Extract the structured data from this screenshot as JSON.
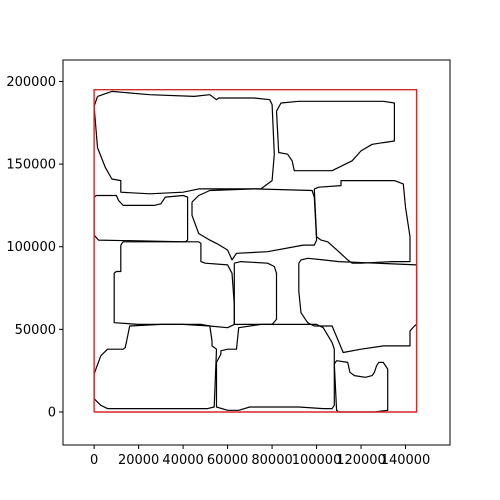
{
  "chart_data": {
    "type": "line",
    "title": "",
    "xlabel": "",
    "ylabel": "",
    "xlim": [
      -14000,
      160000
    ],
    "ylim": [
      -20000,
      213000
    ],
    "x_ticks": [
      0,
      20000,
      40000,
      60000,
      80000,
      100000,
      120000,
      140000
    ],
    "x_tick_labels": [
      "0",
      "20000",
      "40000",
      "60000",
      "80000",
      "100000",
      "120000",
      "140000"
    ],
    "y_ticks": [
      0,
      50000,
      100000,
      150000,
      200000
    ],
    "y_tick_labels": [
      "0",
      "50000",
      "100000",
      "150000",
      "200000"
    ],
    "grid": false,
    "colors": {
      "boundary": "#d62728",
      "shapes": "#000000",
      "axes": "#000000"
    },
    "boundary": {
      "x": [
        0,
        145000,
        145000,
        0,
        0
      ],
      "y": [
        0,
        0,
        195000,
        195000,
        0
      ]
    },
    "series": [
      {
        "x": [
          1500,
          8000,
          25000,
          45000,
          52000,
          55000,
          56000,
          72000,
          79000,
          80000,
          81000,
          80000,
          75000,
          65000,
          47000,
          40000,
          25000,
          12000,
          12000,
          8000,
          5000,
          1500,
          0,
          1500
        ],
        "y": [
          191000,
          194000,
          192000,
          191000,
          192000,
          189000,
          190000,
          190000,
          189000,
          186000,
          156000,
          140000,
          135000,
          135000,
          135000,
          133000,
          132000,
          133000,
          140000,
          141000,
          148000,
          160000,
          185000,
          191000
        ]
      },
      {
        "x": [
          82000,
          84000,
          92000,
          130000,
          135000,
          135000,
          130000,
          125000,
          120000,
          116000,
          107000,
          90000,
          89000,
          87000,
          83000,
          82000
        ],
        "y": [
          182000,
          187000,
          188000,
          188000,
          187000,
          164000,
          163000,
          162000,
          158000,
          152000,
          146000,
          146000,
          152000,
          156000,
          157000,
          182000
        ]
      },
      {
        "x": [
          0,
          1000,
          10000,
          11000,
          13000,
          27000,
          30000,
          32000,
          40000,
          42000,
          42000,
          41000,
          2000,
          0,
          0
        ],
        "y": [
          130000,
          131000,
          131000,
          128000,
          125000,
          125000,
          126000,
          130000,
          131000,
          130000,
          104000,
          103000,
          104000,
          107000,
          130000
        ]
      },
      {
        "x": [
          44000,
          47000,
          52000,
          72000,
          98000,
          99000,
          100000,
          99000,
          94000,
          78000,
          64000,
          62000,
          60000,
          55000,
          52000,
          47000,
          44000,
          44000
        ],
        "y": [
          127000,
          131000,
          134000,
          135000,
          134000,
          130000,
          104000,
          101000,
          101000,
          97000,
          96000,
          92000,
          98000,
          102000,
          104000,
          108000,
          119000,
          127000
        ]
      },
      {
        "x": [
          99000,
          101000,
          111000,
          111000,
          135000,
          139000,
          140000,
          142000,
          142000,
          134000,
          120000,
          116000,
          114000,
          110000,
          105000,
          102000,
          100000,
          99000
        ],
        "y": [
          135000,
          136000,
          137000,
          140000,
          140000,
          138000,
          124000,
          106000,
          91000,
          91000,
          90000,
          90000,
          92000,
          97000,
          103000,
          104000,
          106000,
          135000
        ]
      },
      {
        "x": [
          12000,
          13000,
          20000,
          47000,
          48000,
          48000,
          50000,
          60000,
          62000,
          63000,
          63000,
          60000,
          52000,
          40000,
          20000,
          9000,
          9000,
          10000,
          12000,
          12000
        ],
        "y": [
          101000,
          103000,
          103000,
          103000,
          102000,
          91000,
          90000,
          89000,
          84000,
          65000,
          53000,
          51000,
          52000,
          53000,
          53000,
          54000,
          84000,
          85000,
          85000,
          101000
        ]
      },
      {
        "x": [
          63000,
          66000,
          78000,
          81000,
          82000,
          82000,
          80000,
          74000,
          63000,
          63000
        ],
        "y": [
          90000,
          91000,
          90000,
          88000,
          84000,
          56000,
          53000,
          53000,
          53000,
          90000
        ]
      },
      {
        "x": [
          92000,
          93000,
          96000,
          103000,
          110000,
          145000,
          145000,
          144000,
          142000,
          142000,
          130000,
          120000,
          112000,
          107000,
          99000,
          96000,
          93000,
          92000,
          92000
        ],
        "y": [
          90000,
          92000,
          93000,
          92000,
          91000,
          89000,
          53000,
          52000,
          49000,
          40000,
          40000,
          38000,
          36000,
          52000,
          52000,
          54000,
          60000,
          73000,
          90000
        ]
      },
      {
        "x": [
          3000,
          6000,
          13000,
          14000,
          16000,
          30000,
          48000,
          52000,
          53000,
          53000,
          55000,
          54000,
          51000,
          40000,
          25000,
          12000,
          6000,
          3000,
          0,
          0,
          3000
        ],
        "y": [
          34000,
          38000,
          38000,
          39000,
          52000,
          53000,
          53000,
          52000,
          43000,
          40000,
          38000,
          3000,
          2000,
          2000,
          2000,
          2000,
          2000,
          4000,
          8000,
          23000,
          34000
        ]
      },
      {
        "x": [
          55000,
          57000,
          57000,
          60000,
          64000,
          65000,
          75000,
          100000,
          103000,
          107000,
          108000,
          108000,
          107000,
          103000,
          92000,
          77000,
          70000,
          65000,
          60000,
          55000,
          55000
        ],
        "y": [
          30000,
          35000,
          37000,
          38000,
          38000,
          51000,
          53000,
          53000,
          51000,
          42000,
          38000,
          4000,
          2000,
          2000,
          3000,
          3000,
          3000,
          1000,
          1000,
          3000,
          30000
        ]
      },
      {
        "x": [
          108000,
          109000,
          114000,
          115000,
          117000,
          122000,
          125000,
          126000,
          127000,
          128000,
          130000,
          132000,
          132000,
          126000,
          118000,
          110000,
          109000,
          108000
        ],
        "y": [
          29000,
          31000,
          30000,
          24000,
          22000,
          21000,
          22000,
          24000,
          28000,
          30000,
          30000,
          26000,
          1000,
          0,
          0,
          0,
          1000,
          29000
        ]
      }
    ]
  }
}
